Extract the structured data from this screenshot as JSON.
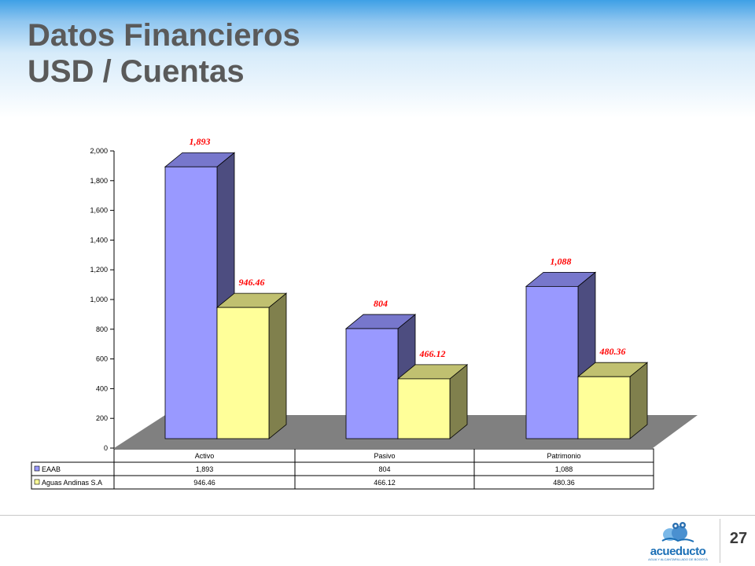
{
  "slide": {
    "title_line1": "Datos Financieros",
    "title_line2": "USD / Cuentas",
    "page_number": "27",
    "logo_text": "acueducto",
    "logo_subtext": "AGUA Y ALCANTARILLADO DE BOGOTÁ"
  },
  "chart_data": {
    "type": "bar",
    "categories": [
      "Activo",
      "Pasivo",
      "Patrimonio"
    ],
    "series": [
      {
        "name": "EAAB",
        "values": [
          1893,
          804,
          1088
        ],
        "labels": [
          "1,893",
          "804",
          "1,088"
        ],
        "color": "#9999ff",
        "side_color": "#4d4d80",
        "top_color": "#7777cc"
      },
      {
        "name": "Aguas Andinas S.A",
        "values": [
          946.46,
          466.12,
          480.36
        ],
        "labels": [
          "946.46",
          "466.12",
          "480.36"
        ],
        "color": "#ffff99",
        "side_color": "#80804d",
        "top_color": "#c0c070"
      }
    ],
    "yticks": [
      "0",
      "200",
      "400",
      "600",
      "800",
      "1,000",
      "1,200",
      "1,400",
      "1,600",
      "1,800",
      "2,000"
    ],
    "ylim": [
      0,
      2000
    ],
    "title": "",
    "xlabel": "",
    "ylabel": "",
    "legend": "data-table-bottom",
    "grid": false,
    "floor_color": "#808080",
    "data_label_color": "#ff0000"
  }
}
